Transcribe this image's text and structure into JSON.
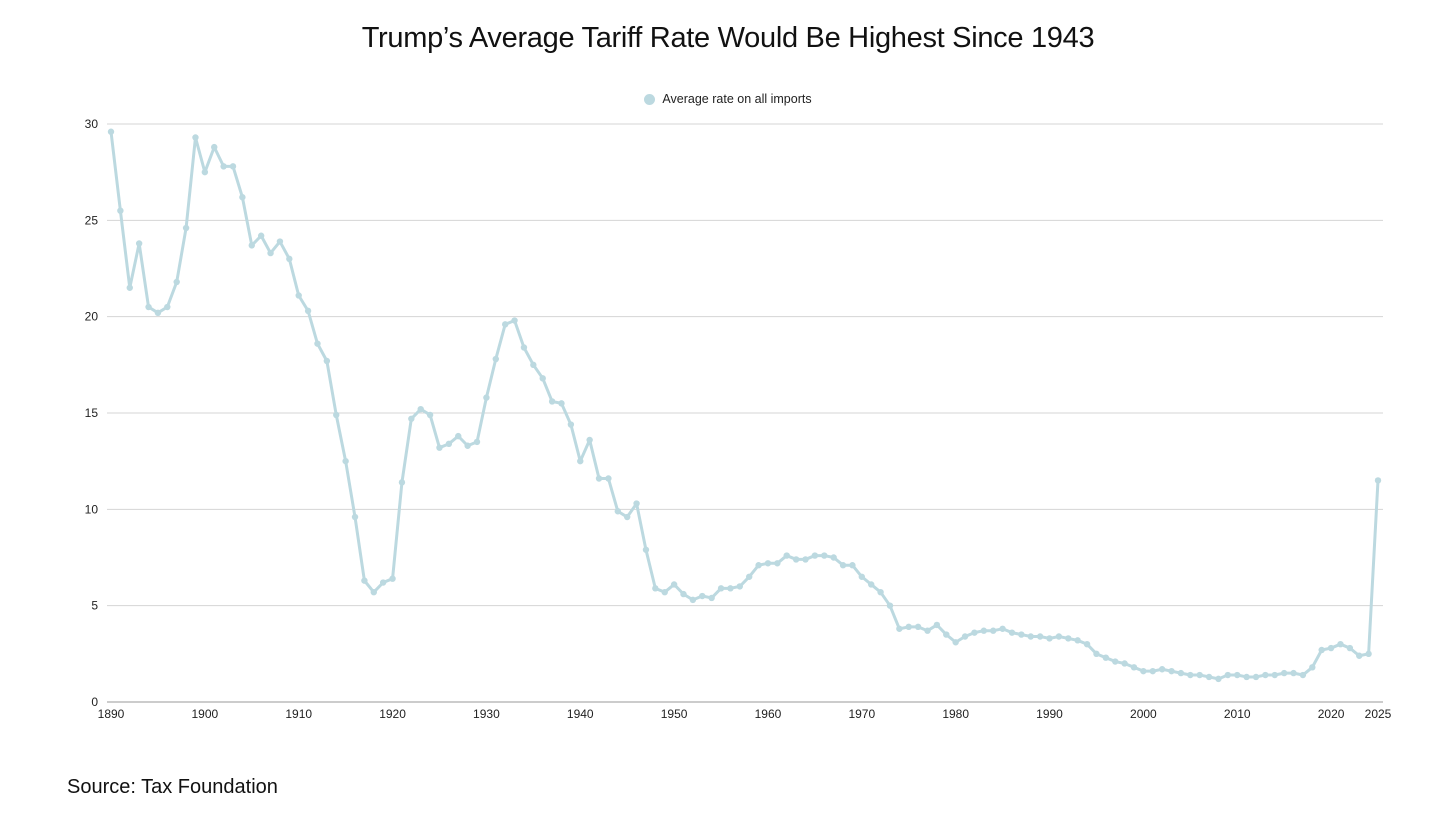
{
  "chart_data": {
    "type": "line",
    "title": "Trump’s Average Tariff Rate Would Be Highest Since 1943",
    "xlabel": "",
    "ylabel": "",
    "ylim": [
      0,
      30
    ],
    "yticks": [
      0,
      5,
      10,
      15,
      20,
      25,
      30
    ],
    "xticks": [
      1890,
      1900,
      1910,
      1920,
      1930,
      1940,
      1950,
      1960,
      1970,
      1980,
      1990,
      2000,
      2010,
      2020,
      2025
    ],
    "grid": true,
    "legend_position": "top-center",
    "x": [
      1890,
      1891,
      1892,
      1893,
      1894,
      1895,
      1896,
      1897,
      1898,
      1899,
      1900,
      1901,
      1902,
      1903,
      1904,
      1905,
      1906,
      1907,
      1908,
      1909,
      1910,
      1911,
      1912,
      1913,
      1914,
      1915,
      1916,
      1917,
      1918,
      1919,
      1920,
      1921,
      1922,
      1923,
      1924,
      1925,
      1926,
      1927,
      1928,
      1929,
      1930,
      1931,
      1932,
      1933,
      1934,
      1935,
      1936,
      1937,
      1938,
      1939,
      1940,
      1941,
      1942,
      1943,
      1944,
      1945,
      1946,
      1947,
      1948,
      1949,
      1950,
      1951,
      1952,
      1953,
      1954,
      1955,
      1956,
      1957,
      1958,
      1959,
      1960,
      1961,
      1962,
      1963,
      1964,
      1965,
      1966,
      1967,
      1968,
      1969,
      1970,
      1971,
      1972,
      1973,
      1974,
      1975,
      1976,
      1977,
      1978,
      1979,
      1980,
      1981,
      1982,
      1983,
      1984,
      1985,
      1986,
      1987,
      1988,
      1989,
      1990,
      1991,
      1992,
      1993,
      1994,
      1995,
      1996,
      1997,
      1998,
      1999,
      2000,
      2001,
      2002,
      2003,
      2004,
      2005,
      2006,
      2007,
      2008,
      2009,
      2010,
      2011,
      2012,
      2013,
      2014,
      2015,
      2016,
      2017,
      2018,
      2019,
      2020,
      2021,
      2022,
      2023,
      2024,
      2025
    ],
    "series": [
      {
        "name": "Average rate on all imports",
        "color": "#bcd9e0",
        "values": [
          29.6,
          25.5,
          21.5,
          23.8,
          20.5,
          20.2,
          20.5,
          21.8,
          24.6,
          29.3,
          27.5,
          28.8,
          27.8,
          27.8,
          26.2,
          23.7,
          24.2,
          23.3,
          23.9,
          23.0,
          21.1,
          20.3,
          18.6,
          17.7,
          14.9,
          12.5,
          9.6,
          6.3,
          5.7,
          6.2,
          6.4,
          11.4,
          14.7,
          15.2,
          14.9,
          13.2,
          13.4,
          13.8,
          13.3,
          13.5,
          15.8,
          17.8,
          19.6,
          19.8,
          18.4,
          17.5,
          16.8,
          15.6,
          15.5,
          14.4,
          12.5,
          13.6,
          11.6,
          11.6,
          9.9,
          9.6,
          10.3,
          7.9,
          5.9,
          5.7,
          6.1,
          5.6,
          5.3,
          5.5,
          5.4,
          5.9,
          5.9,
          6.0,
          6.5,
          7.1,
          7.2,
          7.2,
          7.6,
          7.4,
          7.4,
          7.6,
          7.6,
          7.5,
          7.1,
          7.1,
          6.5,
          6.1,
          5.7,
          5.0,
          3.8,
          3.9,
          3.9,
          3.7,
          4.0,
          3.5,
          3.1,
          3.4,
          3.6,
          3.7,
          3.7,
          3.8,
          3.6,
          3.5,
          3.4,
          3.4,
          3.3,
          3.4,
          3.3,
          3.2,
          3.0,
          2.5,
          2.3,
          2.1,
          2.0,
          1.8,
          1.6,
          1.6,
          1.7,
          1.6,
          1.5,
          1.4,
          1.4,
          1.3,
          1.2,
          1.4,
          1.4,
          1.3,
          1.3,
          1.4,
          1.4,
          1.5,
          1.5,
          1.4,
          1.8,
          2.7,
          2.8,
          3.0,
          2.8,
          2.4,
          2.5,
          11.5
        ]
      }
    ]
  },
  "source": "Source: Tax Foundation"
}
